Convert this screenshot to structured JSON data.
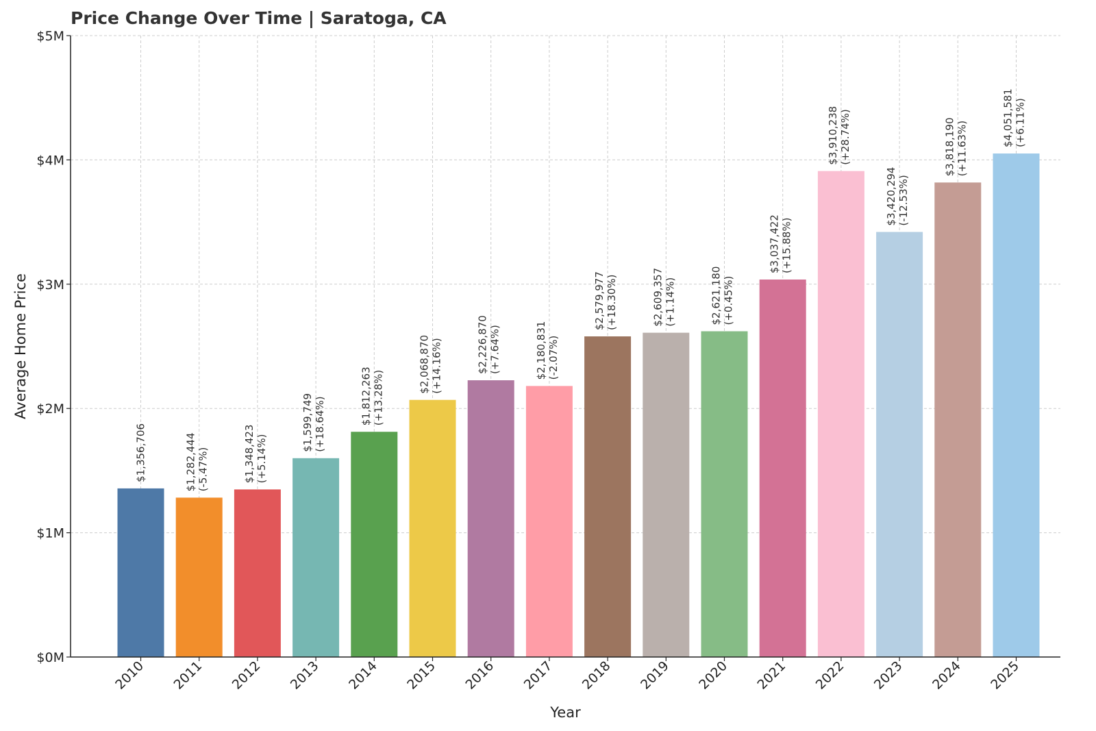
{
  "chart_data": {
    "type": "bar",
    "title": "Price Change Over Time | Saratoga, CA",
    "xlabel": "Year",
    "ylabel": "Average Home Price",
    "ylim": [
      0,
      5000000
    ],
    "yticks": [
      0,
      1000000,
      2000000,
      3000000,
      4000000,
      5000000
    ],
    "ytick_labels": [
      "$0M",
      "$1M",
      "$2M",
      "$3M",
      "$4M",
      "$5M"
    ],
    "grid": true,
    "categories": [
      "2010",
      "2011",
      "2012",
      "2013",
      "2014",
      "2015",
      "2016",
      "2017",
      "2018",
      "2019",
      "2020",
      "2021",
      "2022",
      "2023",
      "2024",
      "2025"
    ],
    "values": [
      1356706,
      1282444,
      1348423,
      1599749,
      1812263,
      2068870,
      2226870,
      2180831,
      2579977,
      2609357,
      2621180,
      3037422,
      3910238,
      3420294,
      3818190,
      4051581
    ],
    "value_labels": [
      "$1,356,706",
      "$1,282,444",
      "$1,348,423",
      "$1,599,749",
      "$1,812,263",
      "$2,068,870",
      "$2,226,870",
      "$2,180,831",
      "$2,579,977",
      "$2,609,357",
      "$2,621,180",
      "$3,037,422",
      "$3,910,238",
      "$3,420,294",
      "$3,818,190",
      "$4,051,581"
    ],
    "change_labels": [
      "",
      "(-5.47%)",
      "(+5.14%)",
      "(+18.64%)",
      "(+13.28%)",
      "(+14.16%)",
      "(+7.64%)",
      "(-2.07%)",
      "(+18.30%)",
      "(+1.14%)",
      "(+0.45%)",
      "(+15.88%)",
      "(+28.74%)",
      "(-12.53%)",
      "(+11.63%)",
      "(+6.11%)"
    ],
    "colors": [
      "#4e79a7",
      "#f28e2b",
      "#e15759",
      "#76b7b2",
      "#59a14f",
      "#edc948",
      "#b07aa1",
      "#ff9da7",
      "#9c755f",
      "#bab0ac",
      "#86bc86",
      "#d37295",
      "#fabfd2",
      "#b5cfe3",
      "#c49c94",
      "#9ecae9"
    ]
  }
}
